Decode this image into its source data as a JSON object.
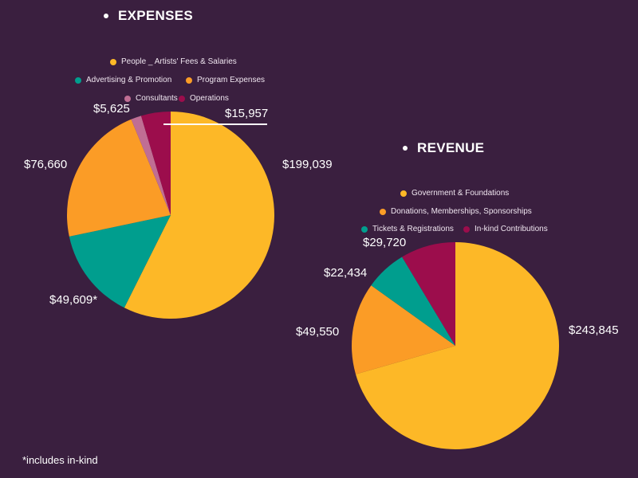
{
  "chart_data": [
    {
      "type": "pie",
      "title": "EXPENSES",
      "legend_placement": "top",
      "slices": [
        {
          "name": "People _ Artists' Fees & Salaries",
          "value": 199039,
          "label": "$199,039",
          "color": "#fdb827"
        },
        {
          "name": "Advertising & Promotion",
          "value": 49609,
          "label": "$49,609*",
          "color": "#009e8e"
        },
        {
          "name": "Program Expenses",
          "value": 76660,
          "label": "$76,660",
          "color": "#fb9c26"
        },
        {
          "name": "Consultants",
          "value": 5625,
          "label": "$5,625",
          "color": "#c06e94"
        },
        {
          "name": "Operations",
          "value": 15957,
          "label": "$15,957",
          "color": "#9c0d4c"
        }
      ],
      "legend_order": [
        0,
        1,
        2,
        3,
        4
      ]
    },
    {
      "type": "pie",
      "title": "REVENUE",
      "legend_placement": "top",
      "slices": [
        {
          "name": "Government & Foundations",
          "value": 243845,
          "label": "$243,845",
          "color": "#fdb827"
        },
        {
          "name": "Donations, Memberships, Sponsorships",
          "value": 49550,
          "label": "$49,550",
          "color": "#fb9c26"
        },
        {
          "name": "Tickets & Registrations",
          "value": 22434,
          "label": "$22,434",
          "color": "#009e8e"
        },
        {
          "name": "In-kind Contributions",
          "value": 29720,
          "label": "$29,720",
          "color": "#9c0d4c"
        }
      ]
    }
  ],
  "footnote": "*includes in-kind"
}
